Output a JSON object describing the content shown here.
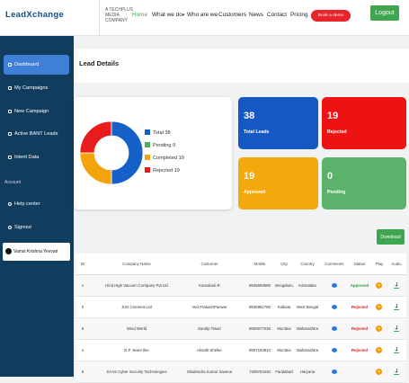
{
  "header": {
    "logo": "LeadXchange",
    "company": "A TECHPLUS MEDIA COMPANY",
    "nav": [
      "Home",
      "What we do",
      "Who are we",
      "Customers",
      "News",
      "Contact",
      "Pricing"
    ],
    "demo_button": "Book a demo",
    "logout_button": "Logout"
  },
  "sidebar": {
    "items": [
      "Dashboard",
      "My Campaigns",
      "New Campaign",
      "Active BANT Leads",
      "Intent Data"
    ],
    "section": "Account",
    "account_items": [
      "Help center",
      "Signout"
    ],
    "user": "Vamsi Krishna Yevvari"
  },
  "page_title": "Lead Details",
  "donut": {
    "legend": [
      {
        "name": "Total",
        "value": 38,
        "color": "#1560c9"
      },
      {
        "name": "Pending",
        "value": 0,
        "color": "#4cae5b"
      },
      {
        "name": "Completed",
        "value": 19,
        "color": "#f3a40c"
      },
      {
        "name": "Rejected",
        "value": 19,
        "color": "#e81c1c"
      }
    ]
  },
  "cards": [
    {
      "value": "38",
      "label": "Total Leads",
      "color": "#1558c4"
    },
    {
      "value": "19",
      "label": "Rejected",
      "color": "#ee1313"
    },
    {
      "value": "19",
      "label": "Approved",
      "color": "#f4a80b"
    },
    {
      "value": "0",
      "label": "Pending",
      "color": "#5bb26a"
    }
  ],
  "download_button": "Download",
  "table": {
    "columns": [
      "ID",
      "Company Name",
      "Customer",
      "Mobile",
      "City",
      "Country",
      "Comments",
      "Status",
      "Play",
      "Audio"
    ],
    "rows": [
      [
        "1",
        "Hind High Vacuum Company Pvt Ltd",
        "Kamakodi R",
        "9845693588",
        "Bengaluru",
        "Karnataka",
        "Approved"
      ],
      [
        "3",
        "JUD Cements Ltd",
        "Ved PrakashPanwar",
        "9836981788",
        "Kolkata",
        "West Bengal",
        "Rejected"
      ],
      [
        "6",
        "Wind World",
        "Sandip Tiwari",
        "9800077038",
        "Mumbai",
        "Maharashtra",
        "Rejected"
      ],
      [
        "4",
        "D.P Jewel Ilne",
        "eknath Shelke",
        "9867183910",
        "Mumbai",
        "Maharashtra",
        "Rejected"
      ],
      [
        "5",
        "SAAS Cyber Security Technologies",
        "Shailendra Kumar Saxena",
        "7309753430",
        "Faridabad",
        "Haryana",
        ""
      ]
    ]
  }
}
